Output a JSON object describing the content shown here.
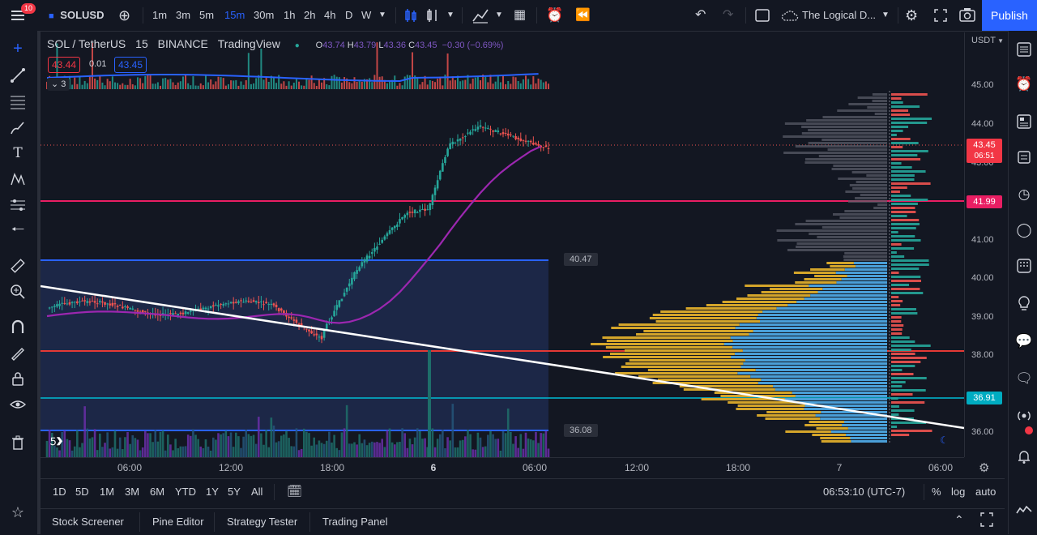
{
  "topbar": {
    "notif_count": "10",
    "symbol": "SOLUSD",
    "timeframes": [
      "1m",
      "3m",
      "5m",
      "15m",
      "30m",
      "1h",
      "2h",
      "4h",
      "D",
      "W"
    ],
    "active_timeframe": "15m",
    "layout_name": "The Logical D...",
    "publish_label": "Publish"
  },
  "legend": {
    "title": "SOL / TetherUS",
    "interval": "15",
    "exchange": "BINANCE",
    "source": "TradingView",
    "o_label": "O",
    "o": "43.74",
    "h_label": "H",
    "h": "43.79",
    "l_label": "L",
    "l": "43.36",
    "c_label": "C",
    "c": "43.45",
    "change": "−0.30 (−0.69%)",
    "bid": "43.44",
    "spread": "0.01",
    "ask": "43.45",
    "indicators_count": "3"
  },
  "price_axis": {
    "currency": "USDT",
    "ticks": [
      "45.00",
      "44.00",
      "43.00",
      "41.00",
      "40.00",
      "39.00",
      "38.00",
      "36.00"
    ],
    "current_price": "43.45",
    "countdown": "06:51",
    "line_label_1": "41.99",
    "line_label_2": "36.91"
  },
  "zones": {
    "upper": "40.47",
    "lower": "36.08"
  },
  "time_axis": {
    "ticks": [
      "06:00",
      "12:00",
      "18:00",
      "6",
      "06:00",
      "12:00",
      "18:00",
      "7",
      "06:00"
    ]
  },
  "range_bar": {
    "ranges": [
      "1D",
      "5D",
      "1M",
      "3M",
      "6M",
      "YTD",
      "1Y",
      "5Y",
      "All"
    ],
    "clock": "06:53:10 (UTC-7)",
    "percent": "%",
    "log": "log",
    "auto": "auto"
  },
  "bottom_tabs": [
    "Stock Screener",
    "Pine Editor",
    "Strategy Tester",
    "Trading Panel"
  ],
  "colors": {
    "accent": "#2962ff",
    "up": "#26a69a",
    "down": "#ef5350",
    "magenta": "#e91e63",
    "ma": "#9c27b0",
    "vp_yellow": "#d4a52a",
    "vp_blue": "#4a9fd8"
  }
}
